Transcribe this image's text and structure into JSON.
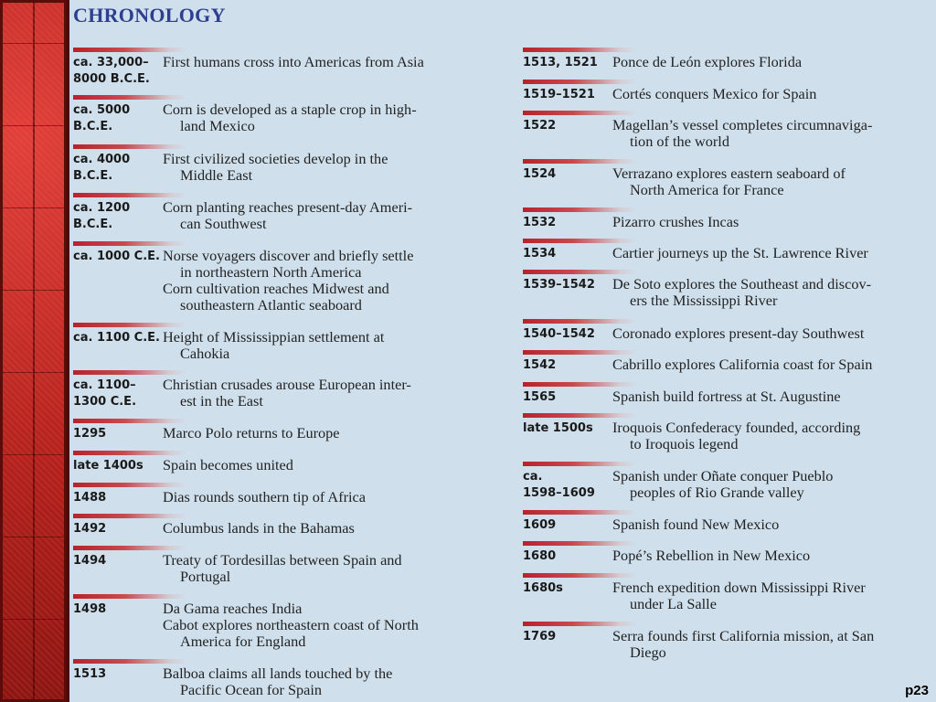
{
  "title": "CHRONOLOGY",
  "page_number": "p23",
  "left_column": [
    {
      "date": [
        "ca. 33,000–",
        "8000 B.C.E."
      ],
      "events": [
        [
          "First humans cross into Americas from Asia"
        ]
      ]
    },
    {
      "date": [
        "ca. 5000",
        "B.C.E."
      ],
      "events": [
        [
          "Corn is developed as a staple crop in high-",
          "land Mexico"
        ]
      ]
    },
    {
      "date": [
        "ca. 4000",
        "B.C.E."
      ],
      "events": [
        [
          "First civilized societies develop in the",
          "Middle East"
        ]
      ]
    },
    {
      "date": [
        "ca. 1200",
        "B.C.E."
      ],
      "events": [
        [
          "Corn planting reaches present-day Ameri-",
          "can Southwest"
        ]
      ]
    },
    {
      "date": [
        "ca. 1000 C.E."
      ],
      "events": [
        [
          "Norse voyagers discover and briefly settle",
          "in northeastern North America"
        ],
        [
          "Corn cultivation reaches Midwest and",
          "southeastern Atlantic seaboard"
        ]
      ]
    },
    {
      "date": [
        "ca. 1100 C.E."
      ],
      "events": [
        [
          "Height of Mississippian settlement at",
          "Cahokia"
        ]
      ]
    },
    {
      "date": [
        "ca. 1100–",
        "1300 C.E."
      ],
      "events": [
        [
          "Christian crusades arouse European inter-",
          "est in the East"
        ]
      ]
    },
    {
      "date": [
        "1295"
      ],
      "events": [
        [
          "Marco Polo returns to Europe"
        ]
      ]
    },
    {
      "date": [
        "late 1400s"
      ],
      "events": [
        [
          "Spain becomes united"
        ]
      ]
    },
    {
      "date": [
        "1488"
      ],
      "events": [
        [
          "Dias rounds southern tip of Africa"
        ]
      ]
    },
    {
      "date": [
        "1492"
      ],
      "events": [
        [
          "Columbus lands in the Bahamas"
        ]
      ]
    },
    {
      "date": [
        "1494"
      ],
      "events": [
        [
          "Treaty of Tordesillas between Spain and",
          "Portugal"
        ]
      ]
    },
    {
      "date": [
        "1498"
      ],
      "events": [
        [
          "Da Gama reaches India"
        ],
        [
          "Cabot explores northeastern coast of North",
          "America for England"
        ]
      ]
    },
    {
      "date": [
        "1513"
      ],
      "events": [
        [
          "Balboa claims all lands touched by the",
          "Pacific Ocean for Spain"
        ]
      ]
    }
  ],
  "right_column": [
    {
      "date": [
        "1513, 1521"
      ],
      "events": [
        [
          "Ponce de León explores Florida"
        ]
      ]
    },
    {
      "date": [
        "1519–1521"
      ],
      "events": [
        [
          "Cortés conquers Mexico for Spain"
        ]
      ]
    },
    {
      "date": [
        "1522"
      ],
      "events": [
        [
          "Magellan’s vessel completes circumnaviga-",
          "tion of the world"
        ]
      ]
    },
    {
      "date": [
        "1524"
      ],
      "events": [
        [
          "Verrazano explores eastern seaboard of",
          "North America for France"
        ]
      ]
    },
    {
      "date": [
        "1532"
      ],
      "events": [
        [
          "Pizarro crushes Incas"
        ]
      ]
    },
    {
      "date": [
        "1534"
      ],
      "events": [
        [
          "Cartier journeys up the St. Lawrence River"
        ]
      ]
    },
    {
      "date": [
        "1539–1542"
      ],
      "events": [
        [
          "De Soto explores the Southeast and discov-",
          "ers the Mississippi River"
        ]
      ]
    },
    {
      "date": [
        "1540–1542"
      ],
      "events": [
        [
          "Coronado explores present-day Southwest"
        ]
      ]
    },
    {
      "date": [
        "1542"
      ],
      "events": [
        [
          "Cabrillo explores California coast for Spain"
        ]
      ]
    },
    {
      "date": [
        "1565"
      ],
      "events": [
        [
          "Spanish build fortress at St. Augustine"
        ]
      ]
    },
    {
      "date": [
        "late 1500s"
      ],
      "events": [
        [
          "Iroquois Confederacy founded, according",
          "to Iroquois legend"
        ]
      ]
    },
    {
      "date": [
        "ca.",
        "1598–1609"
      ],
      "events": [
        [
          "Spanish under Oñate conquer Pueblo",
          "peoples of Rio Grande valley"
        ]
      ]
    },
    {
      "date": [
        "1609"
      ],
      "events": [
        [
          "Spanish found New Mexico"
        ]
      ]
    },
    {
      "date": [
        "1680"
      ],
      "events": [
        [
          "Popé’s Rebellion in New Mexico"
        ]
      ]
    },
    {
      "date": [
        "1680s"
      ],
      "events": [
        [
          "French expedition down Mississippi River",
          "under La Salle"
        ]
      ]
    },
    {
      "date": [
        "1769"
      ],
      "events": [
        [
          "Serra founds first California mission, at San",
          "Diego"
        ]
      ]
    }
  ]
}
